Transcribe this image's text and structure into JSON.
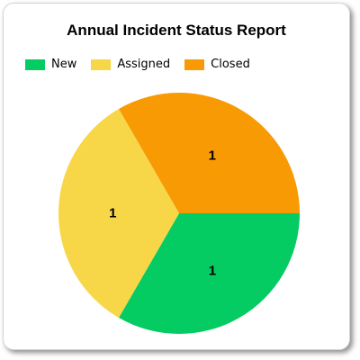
{
  "chart_data": {
    "type": "pie",
    "title": "Annual Incident Status Report",
    "legend_position": "top-left",
    "slices": [
      {
        "label": "New",
        "value": 1,
        "color": "#05cb63"
      },
      {
        "label": "Assigned",
        "value": 1,
        "color": "#f7d748"
      },
      {
        "label": "Closed",
        "value": 1,
        "color": "#f79a04"
      }
    ],
    "data_labels": [
      "1",
      "1",
      "1"
    ]
  }
}
